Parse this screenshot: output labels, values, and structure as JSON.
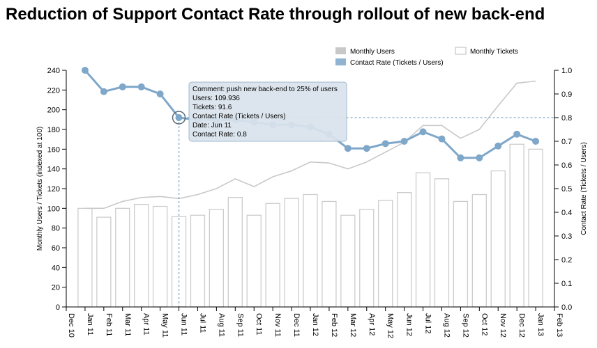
{
  "title": "Reduction of Support Contact Rate through rollout of new back-end",
  "chart_data": {
    "type": "bar+line",
    "title": "Reduction of Support Contact Rate through rollout of new back-end",
    "x_tick_labels": [
      "Dec 10",
      "Jan 11",
      "Feb 11",
      "Mar 11",
      "Apr 11",
      "May 11",
      "Jun 11",
      "Jul 11",
      "Aug 11",
      "Sep 11",
      "Oct 11",
      "Nov 11",
      "Dec 11",
      "Jan 12",
      "Feb 12",
      "Mar 12",
      "Apr 12",
      "May 12",
      "Jun 12",
      "Jul 12",
      "Aug 12",
      "Sep 12",
      "Oct 12",
      "Nov 12",
      "Dec 12",
      "Jan 13",
      "Feb 13"
    ],
    "categories": [
      "Jan 11",
      "Feb 11",
      "Mar 11",
      "Apr 11",
      "May 11",
      "Jun 11",
      "Jul 11",
      "Aug 11",
      "Sep 11",
      "Oct 11",
      "Nov 11",
      "Dec 11",
      "Jan 12",
      "Feb 12",
      "Mar 12",
      "Apr 12",
      "May 12",
      "Jun 12",
      "Jul 12",
      "Aug 12",
      "Sep 12",
      "Oct 12",
      "Nov 12",
      "Dec 12",
      "Jan 13"
    ],
    "y_left": {
      "label": "Monthly Users / Tickets (indexed at 100)",
      "min": 0,
      "max": 240,
      "ticks": [
        0,
        20,
        40,
        60,
        80,
        100,
        120,
        140,
        160,
        180,
        200,
        220,
        240
      ]
    },
    "y_right": {
      "label": "Contact Rate (Tickets / Users)",
      "min": 0,
      "max": 1.0,
      "ticks": [
        "0.0",
        "0.1",
        "0.2",
        "0.3",
        "0.4",
        "0.5",
        "0.6",
        "0.7",
        "0.8",
        "0.9",
        "1.0"
      ]
    },
    "series": [
      {
        "name": "Monthly Tickets",
        "kind": "bar",
        "axis": "left",
        "values": [
          100,
          91,
          100,
          104,
          102,
          91.6,
          93,
          99,
          111,
          93,
          105,
          110,
          114,
          107,
          93,
          99,
          108,
          116,
          136,
          130,
          107,
          114,
          138,
          165,
          160
        ]
      },
      {
        "name": "Monthly Users",
        "kind": "line",
        "axis": "left",
        "values": [
          100,
          100,
          107,
          111,
          112,
          109.936,
          114,
          120,
          130,
          122,
          132,
          138,
          147,
          146,
          140,
          147,
          157,
          167,
          184,
          184,
          171,
          180,
          204,
          227,
          229
        ]
      },
      {
        "name": "Contact Rate (Tickets / Users)",
        "kind": "line",
        "axis": "right",
        "values": [
          1.0,
          0.91,
          0.93,
          0.93,
          0.9,
          0.8,
          0.79,
          0.79,
          0.79,
          0.78,
          0.77,
          0.77,
          0.76,
          0.73,
          0.67,
          0.67,
          0.69,
          0.7,
          0.74,
          0.71,
          0.63,
          0.63,
          0.68,
          0.73,
          0.7
        ]
      }
    ],
    "highlight": {
      "index": 5,
      "lines": [
        "Comment: push new back-end to 25% of users",
        "Users: 109.936",
        "Tickets: 91.6",
        "Contact Rate (Tickets / Users)",
        "Date: Jun 11",
        "Contact Rate: 0.8"
      ]
    },
    "legend": [
      {
        "label": "Monthly Users",
        "color": "#c8c8c8",
        "style": "filled"
      },
      {
        "label": "Monthly Tickets",
        "color": "#ffffff",
        "style": "outline"
      },
      {
        "label": "Contact Rate (Tickets / Users)",
        "color": "#8fb3d1",
        "style": "filled"
      }
    ],
    "legend_position": "top-right",
    "colors": {
      "rate": "#7fa7c9",
      "users": "#c8c8c8",
      "bars": "#cccccc"
    }
  }
}
